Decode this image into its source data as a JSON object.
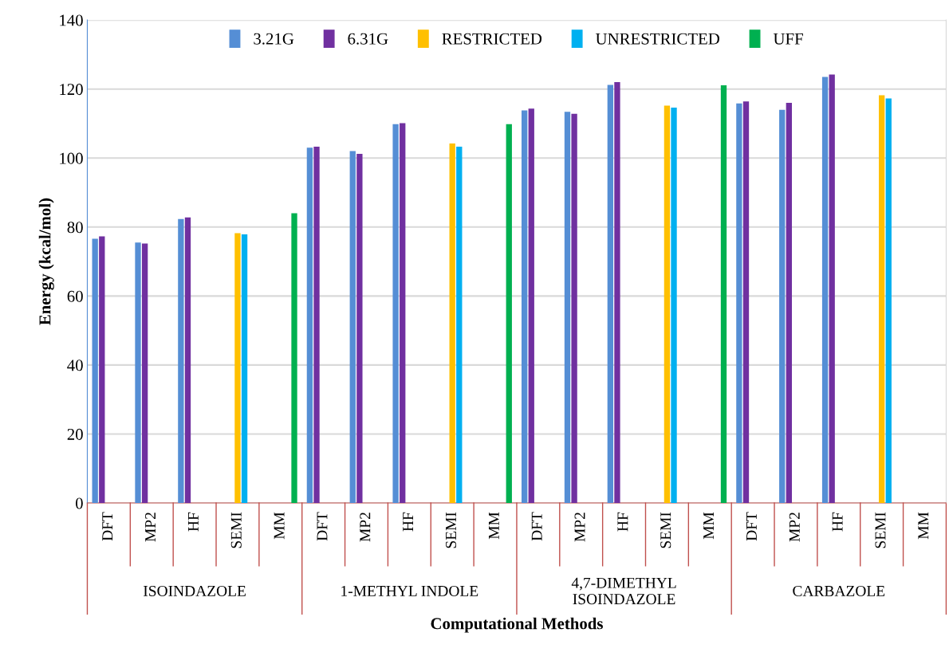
{
  "chart_data": {
    "type": "bar",
    "xlabel": "Computational Methods",
    "ylabel": "Energy (kcal/mol)",
    "categories": [
      "DFT",
      "MP2",
      "HF",
      "SEMI",
      "MM",
      "DFT",
      "MP2",
      "HF",
      "SEMI",
      "MM",
      "DFT",
      "MP2",
      "HF",
      "SEMI",
      "MM",
      "DFT",
      "MP2",
      "HF",
      "SEMI",
      "MM"
    ],
    "series": [
      {
        "name": "3.21G",
        "color": "#558ed5",
        "values": [
          76.6,
          75.5,
          82.3,
          null,
          null,
          103.0,
          102.0,
          109.8,
          null,
          null,
          113.8,
          113.4,
          121.2,
          null,
          null,
          115.8,
          114.0,
          123.5,
          null,
          null
        ]
      },
      {
        "name": "6.31G",
        "color": "#7030a0",
        "values": [
          77.3,
          75.2,
          82.8,
          null,
          null,
          103.3,
          101.2,
          110.1,
          null,
          null,
          114.3,
          112.8,
          122.0,
          null,
          null,
          116.4,
          116.0,
          124.2,
          null,
          null
        ]
      },
      {
        "name": "RESTRICTED",
        "color": "#ffc000",
        "values": [
          null,
          null,
          null,
          78.2,
          null,
          null,
          null,
          null,
          104.2,
          null,
          null,
          null,
          null,
          115.2,
          null,
          null,
          null,
          null,
          118.2,
          null
        ]
      },
      {
        "name": "UNRESTRICTED",
        "color": "#00b0f0",
        "values": [
          null,
          null,
          null,
          77.9,
          null,
          null,
          null,
          null,
          103.3,
          null,
          null,
          null,
          null,
          114.6,
          null,
          null,
          null,
          null,
          117.3,
          null
        ]
      },
      {
        "name": "UFF",
        "color": "#00b050",
        "values": [
          null,
          null,
          null,
          null,
          84.0,
          null,
          null,
          null,
          null,
          109.8,
          null,
          null,
          null,
          null,
          121.1,
          null,
          null,
          null,
          null,
          null
        ]
      }
    ],
    "annotations": [
      "ISOINDAZOLE",
      "1-METHYL INDOLE",
      "4,7-DIMETHYL\nISOINDAZOLE",
      "CARBAZOLE"
    ],
    "ylim": [
      0,
      140
    ],
    "yticks": [
      0,
      20,
      40,
      60,
      80,
      100,
      120,
      140
    ],
    "grid": "y",
    "legend": "top"
  }
}
